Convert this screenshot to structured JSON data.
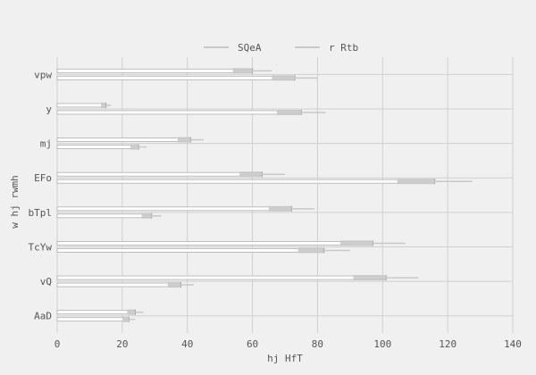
{
  "chart_data": {
    "type": "bar",
    "orientation": "horizontal",
    "categories": [
      "vpw",
      "y",
      "mj",
      "EFo",
      "bTpl",
      "TcYw",
      "vQ",
      "AaD"
    ],
    "series": [
      {
        "name": "SQeA",
        "values": [
          60,
          15,
          41,
          63,
          72,
          97,
          101,
          24
        ],
        "errors": [
          6,
          1.5,
          4,
          7,
          7,
          10,
          10,
          2.5
        ],
        "color": "#c8c8c8"
      },
      {
        "name": "r Rtb",
        "values": [
          73,
          75,
          25,
          116,
          29,
          82,
          38,
          22
        ],
        "errors": [
          7,
          7.5,
          2.5,
          11.5,
          3,
          8,
          4,
          2
        ],
        "color": "#c8c8c8"
      }
    ],
    "xlabel": "hj HfT",
    "ylabel": "w hj rwmh",
    "xlim": [
      0,
      140
    ],
    "xticks": [
      "0",
      "20",
      "40",
      "60",
      "80",
      "100",
      "120",
      "140"
    ],
    "grid": true,
    "legend_position": "top"
  }
}
